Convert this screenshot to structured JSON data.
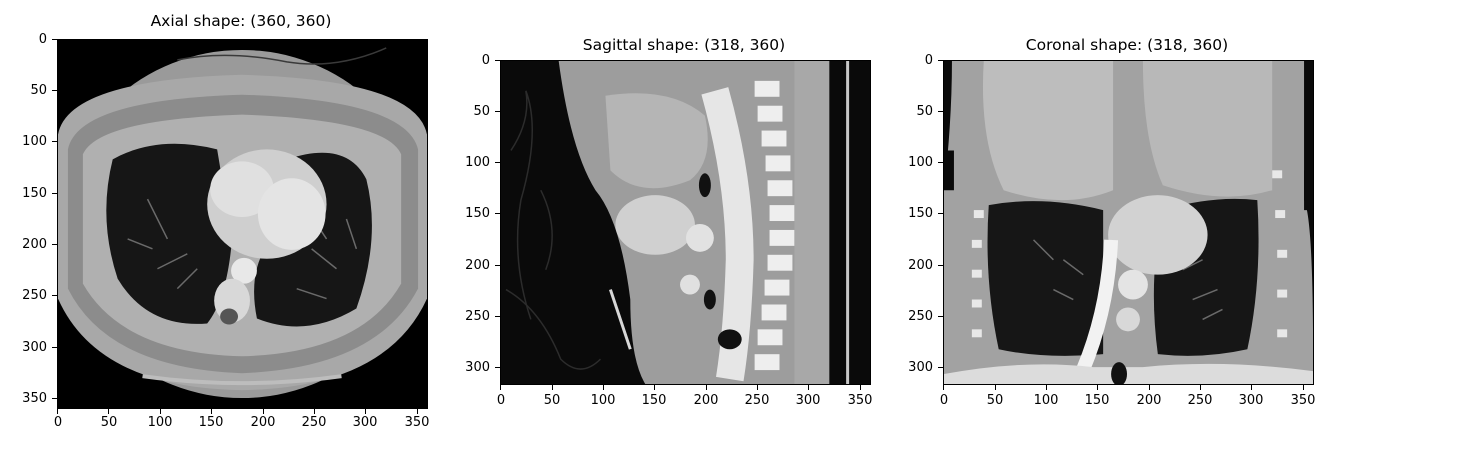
{
  "figures": [
    {
      "id": "axial",
      "title": "Axial shape: (360, 360)",
      "shape": [
        360,
        360
      ],
      "x_ticks": [
        "0",
        "50",
        "100",
        "150",
        "200",
        "250",
        "300",
        "350"
      ],
      "y_ticks": [
        "0",
        "50",
        "100",
        "150",
        "200",
        "250",
        "300",
        "350"
      ],
      "image_description": "CT axial slice of thorax: heart, lungs, spine, body outline"
    },
    {
      "id": "sagittal",
      "title": "Sagittal shape: (318, 360)",
      "shape": [
        318,
        360
      ],
      "x_ticks": [
        "0",
        "50",
        "100",
        "150",
        "200",
        "250",
        "300",
        "350"
      ],
      "y_ticks": [
        "0",
        "50",
        "100",
        "150",
        "200",
        "250",
        "300"
      ],
      "image_description": "CT sagittal slice: liver, aorta, vertebral column"
    },
    {
      "id": "coronal",
      "title": "Coronal shape: (318, 360)",
      "shape": [
        318,
        360
      ],
      "x_ticks": [
        "0",
        "50",
        "100",
        "150",
        "200",
        "250",
        "300",
        "350"
      ],
      "y_ticks": [
        "0",
        "50",
        "100",
        "150",
        "200",
        "250",
        "300"
      ],
      "image_description": "CT coronal slice: liver, lungs, aorta, ribs"
    }
  ]
}
